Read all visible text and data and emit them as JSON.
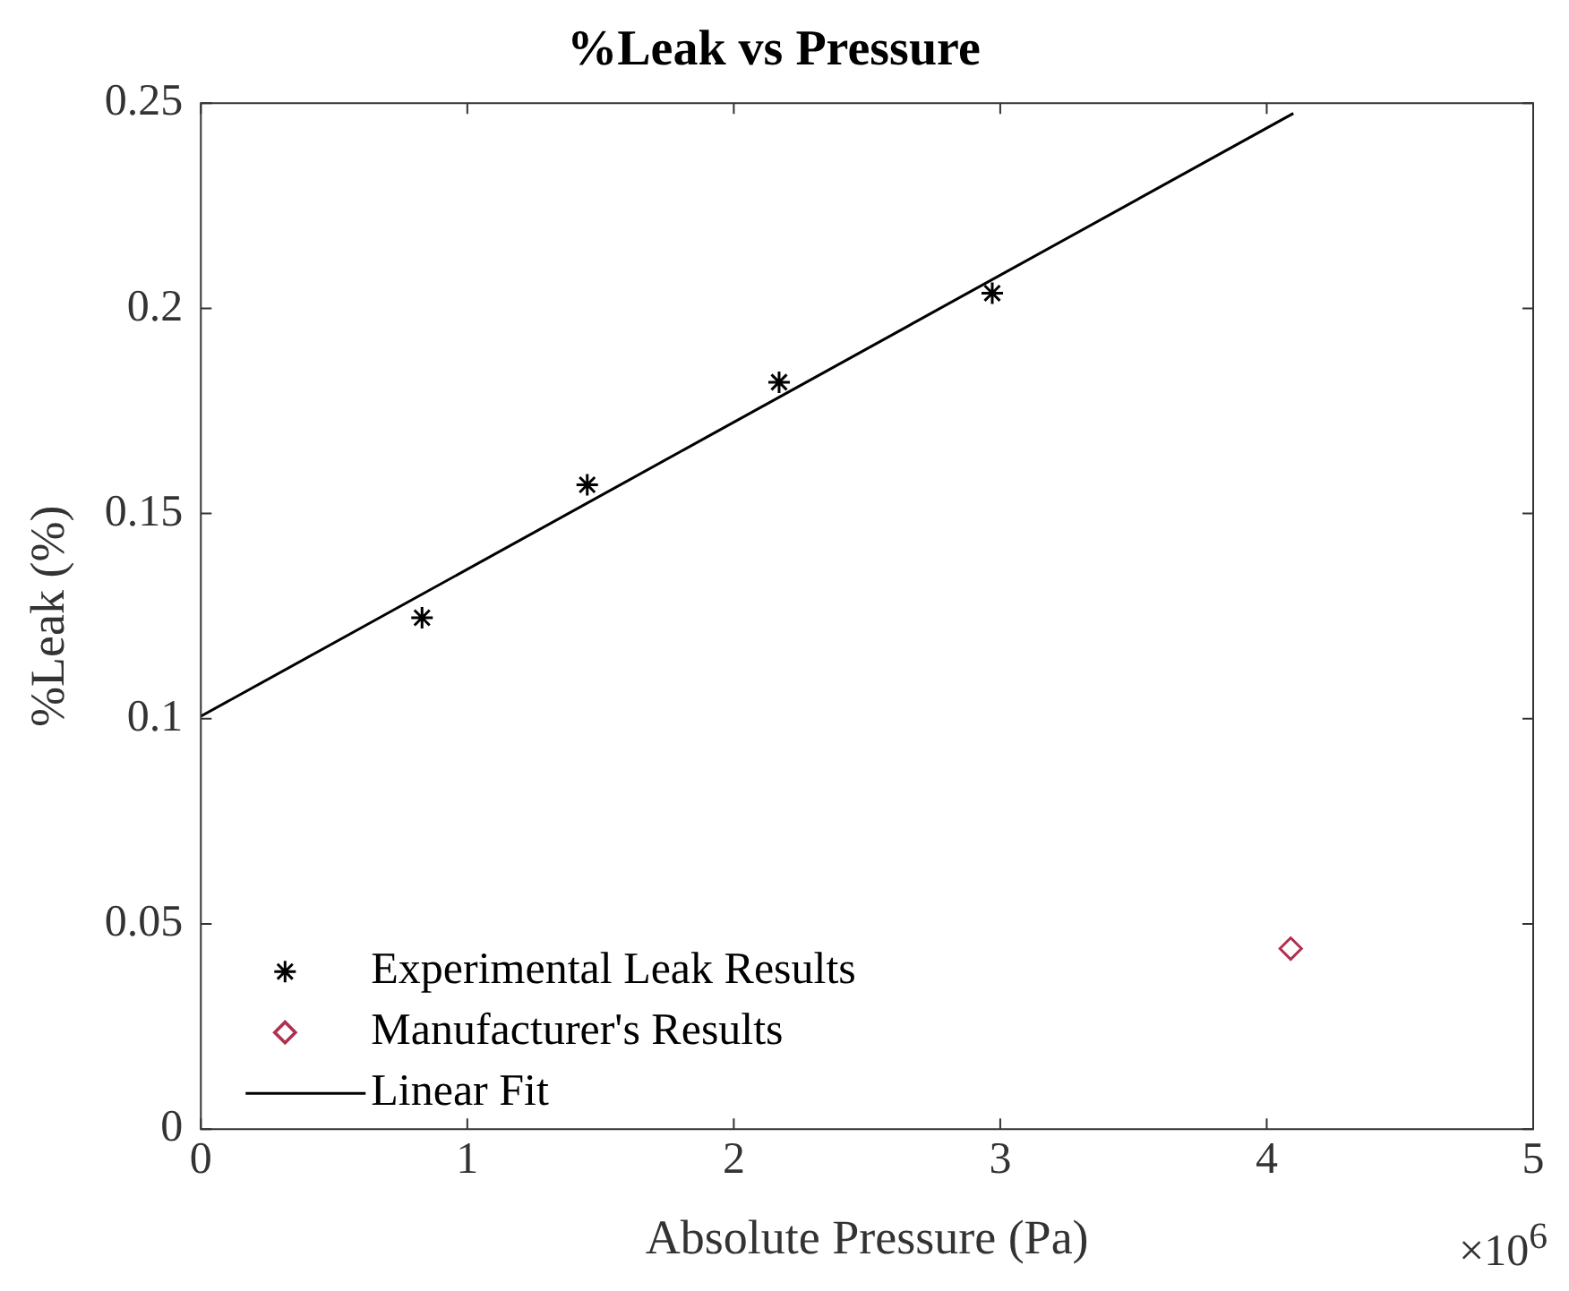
{
  "chart_data": {
    "type": "scatter",
    "title": "%Leak vs Pressure",
    "xlabel": "Absolute Pressure (Pa)",
    "ylabel": "%Leak (%)",
    "annotations": [
      "×10$^{6}$"
    ],
    "xlim": [
      0,
      5
    ],
    "xticks": [
      0,
      1,
      2,
      3,
      4,
      5
    ],
    "ylim": [
      0,
      0.25
    ],
    "yticks": [
      0,
      0.05,
      0.1,
      0.15,
      0.2,
      0.25
    ],
    "grid": false,
    "legend": "bottom left",
    "series": [
      {
        "name": "Experimental Leak Results",
        "type": "scatter",
        "marker": "cross",
        "color": "#000000",
        "x": [
          0.83,
          1.45,
          2.17,
          2.97
        ],
        "values": [
          0.1246,
          0.157,
          0.182,
          0.2037
        ]
      },
      {
        "name": "Manufacturer's Results",
        "type": "scatter",
        "marker": "diamond",
        "color": "#b03050",
        "x": [
          4.09
        ],
        "values": [
          0.044
        ]
      },
      {
        "name": "Linear Fit",
        "type": "line",
        "marker": "none",
        "line_style": "solid",
        "color": "#000000",
        "x": [
          0,
          4.1
        ],
        "values": [
          0.1006,
          0.2475
        ]
      }
    ]
  }
}
